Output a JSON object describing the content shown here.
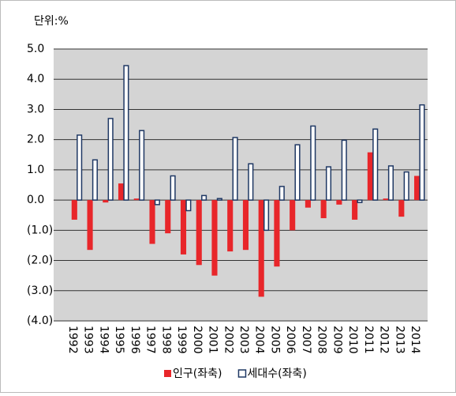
{
  "chart_data": {
    "type": "bar",
    "unit_label": "단위:%",
    "categories": [
      "1992",
      "1993",
      "1994",
      "1995",
      "1996",
      "1997",
      "1998",
      "1999",
      "2000",
      "2001",
      "2002",
      "2003",
      "2004",
      "2005",
      "2006",
      "2007",
      "2008",
      "2009",
      "2010",
      "2011",
      "2012",
      "2013",
      "2014"
    ],
    "series": [
      {
        "name": "인구(좌축)",
        "color": "#e8262a",
        "values": [
          -0.65,
          -1.65,
          -0.08,
          0.55,
          0.05,
          -1.45,
          -1.1,
          -1.8,
          -2.15,
          -2.5,
          -1.7,
          -1.65,
          -3.2,
          -2.2,
          -1.0,
          -0.25,
          -0.6,
          -0.15,
          -0.65,
          1.58,
          0.05,
          -0.55,
          0.8
        ]
      },
      {
        "name": "세대수(좌축)",
        "color": "#1f3864",
        "values": [
          2.15,
          1.33,
          2.7,
          4.45,
          2.3,
          -0.15,
          0.8,
          -0.35,
          0.15,
          0.05,
          2.07,
          1.2,
          -1.0,
          0.45,
          1.83,
          2.45,
          1.1,
          1.98,
          -0.08,
          2.35,
          1.13,
          0.93,
          3.15
        ]
      }
    ],
    "ylim": [
      -4,
      5
    ],
    "yticks": [
      {
        "value": 5,
        "label": "5.0"
      },
      {
        "value": 4,
        "label": "4.0"
      },
      {
        "value": 3,
        "label": "3.0"
      },
      {
        "value": 2,
        "label": "2.0"
      },
      {
        "value": 1,
        "label": "1.0"
      },
      {
        "value": 0,
        "label": "0.0"
      },
      {
        "value": -1,
        "label": "(1.0)"
      },
      {
        "value": -2,
        "label": "(2.0)"
      },
      {
        "value": -3,
        "label": "(3.0)"
      },
      {
        "value": -4,
        "label": "(4.0)"
      }
    ],
    "grid": true,
    "legend": "bottom"
  }
}
